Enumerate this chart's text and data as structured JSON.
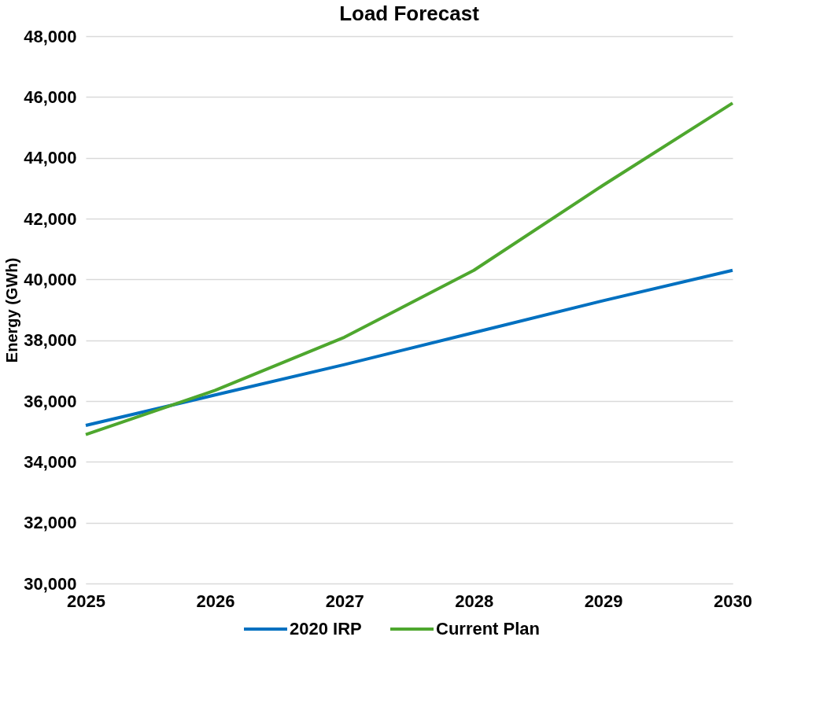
{
  "chart_data": {
    "type": "line",
    "title": "Load Forecast",
    "ylabel": "Energy (GWh)",
    "categories": [
      "2025",
      "2026",
      "2027",
      "2028",
      "2029",
      "2030"
    ],
    "series": [
      {
        "name": "2020 IRP",
        "color": "#0070c0",
        "values": [
          35200,
          36200,
          37200,
          38250,
          39300,
          40300
        ]
      },
      {
        "name": "Current Plan",
        "color": "#4ea72e",
        "values": [
          34900,
          36350,
          38100,
          40300,
          43100,
          45800
        ]
      }
    ],
    "ylim": [
      30000,
      48000
    ],
    "yticks": [
      {
        "value": 30000,
        "label": "30,000"
      },
      {
        "value": 32000,
        "label": "32,000"
      },
      {
        "value": 34000,
        "label": "34,000"
      },
      {
        "value": 36000,
        "label": "36,000"
      },
      {
        "value": 38000,
        "label": "38,000"
      },
      {
        "value": 40000,
        "label": "40,000"
      },
      {
        "value": 42000,
        "label": "42,000"
      },
      {
        "value": 44000,
        "label": "44,000"
      },
      {
        "value": 46000,
        "label": "46,000"
      },
      {
        "value": 48000,
        "label": "48,000"
      }
    ],
    "grid": "y",
    "legend": "bottom",
    "marker": "none",
    "line_style": "solid"
  }
}
